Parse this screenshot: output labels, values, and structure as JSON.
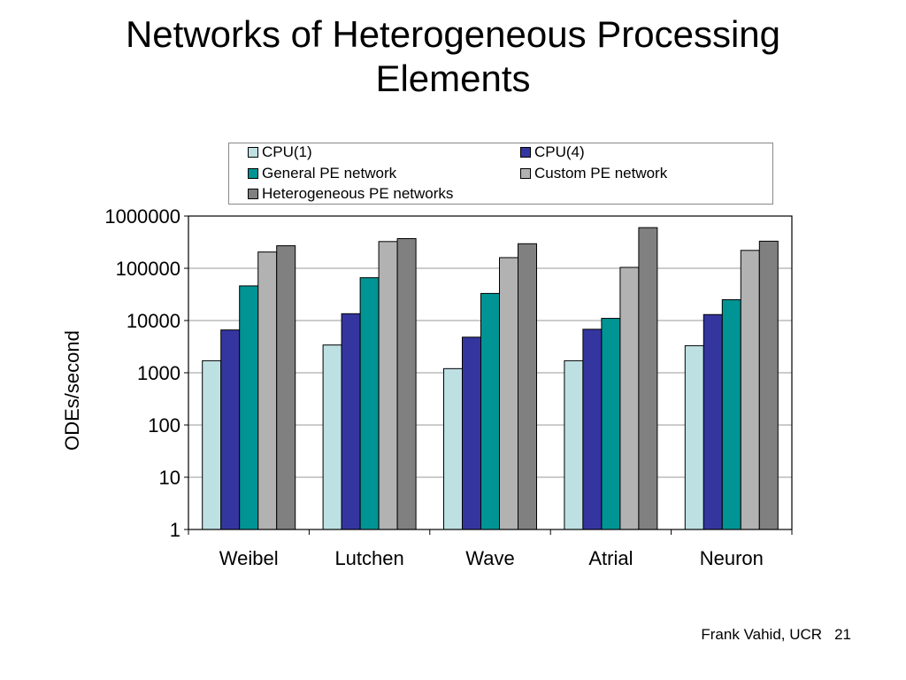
{
  "slide": {
    "title_line1": "Networks of Heterogeneous Processing",
    "title_line2": "Elements",
    "footer_author": "Frank Vahid, UCR",
    "footer_page": "21"
  },
  "chart_data": {
    "type": "bar",
    "title": "",
    "xlabel": "",
    "ylabel": "ODEs/second",
    "y_scale": "log",
    "ylim": [
      1,
      1000000
    ],
    "y_ticks": [
      1,
      10,
      100,
      1000,
      10000,
      100000,
      1000000
    ],
    "y_tick_labels": [
      "1",
      "10",
      "100",
      "1000",
      "10000",
      "100000",
      "1000000"
    ],
    "grid": true,
    "legend_position": "top",
    "categories": [
      "Weibel",
      "Lutchen",
      "Wave",
      "Atrial",
      "Neuron"
    ],
    "series": [
      {
        "name": "CPU(1)",
        "color": "#bde0e3",
        "values": [
          1700,
          3400,
          1200,
          1700,
          3300
        ]
      },
      {
        "name": "CPU(4)",
        "color": "#3535a0",
        "values": [
          6600,
          13500,
          4800,
          6800,
          13000
        ]
      },
      {
        "name": "General PE network",
        "color": "#009494",
        "values": [
          46000,
          66000,
          33000,
          11000,
          25000
        ]
      },
      {
        "name": "Custom PE network",
        "color": "#b2b2b2",
        "values": [
          205000,
          325000,
          160000,
          104000,
          220000
        ]
      },
      {
        "name": "Heterogeneous PE networks",
        "color": "#808080",
        "values": [
          270000,
          370000,
          295000,
          600000,
          330000
        ]
      }
    ]
  }
}
